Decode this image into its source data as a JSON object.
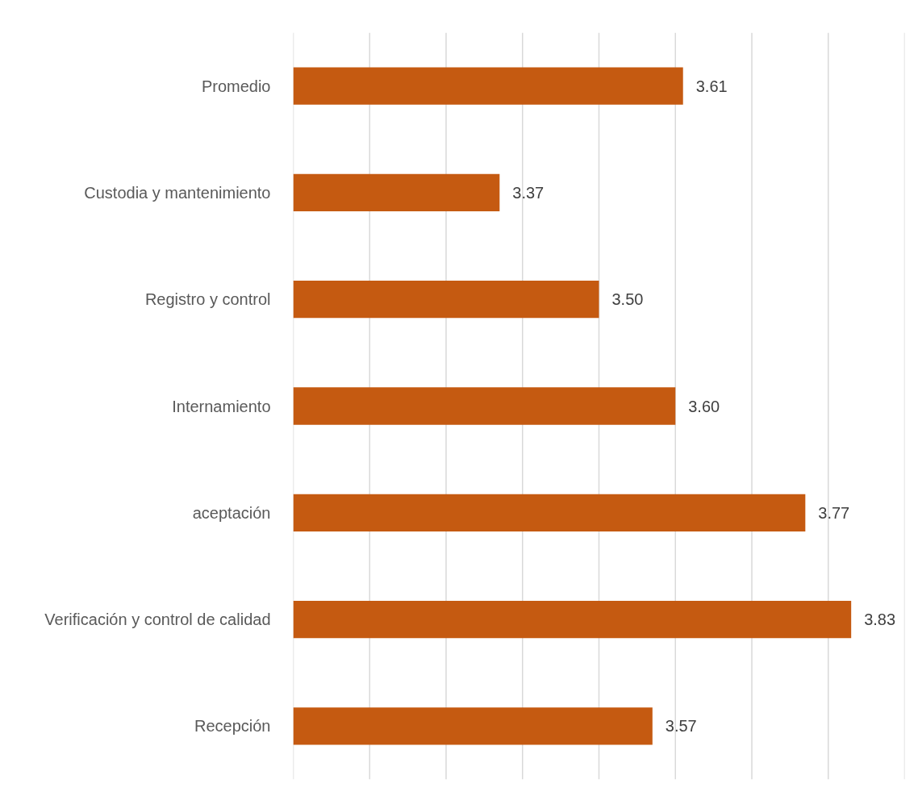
{
  "chart_data": {
    "type": "bar",
    "orientation": "horizontal",
    "categories": [
      "Promedio",
      "Custodia y mantenimiento",
      "Registro y control",
      "Internamiento",
      "aceptación",
      "Verificación y control de calidad",
      "Recepción"
    ],
    "values": [
      3.61,
      3.37,
      3.5,
      3.6,
      3.77,
      3.83,
      3.57
    ],
    "value_labels": [
      "3.61",
      "3.37",
      "3.50",
      "3.60",
      "3.77",
      "3.83",
      "3.57"
    ],
    "color": "#c55a11",
    "xlim": [
      3.1,
      3.9
    ],
    "xticks": [
      {
        "value": 3.1,
        "label": null
      },
      {
        "value": 3.2,
        "label": null
      },
      {
        "value": 3.3,
        "label": null
      },
      {
        "value": 3.4,
        "label": null
      },
      {
        "value": 3.5,
        "label": null
      },
      {
        "value": 3.6,
        "label": null
      },
      {
        "value": 3.7,
        "label": null
      },
      {
        "value": 3.8,
        "label": null
      },
      {
        "value": 3.9,
        "label": null
      }
    ],
    "grid": "x",
    "tick_labels": "y"
  }
}
